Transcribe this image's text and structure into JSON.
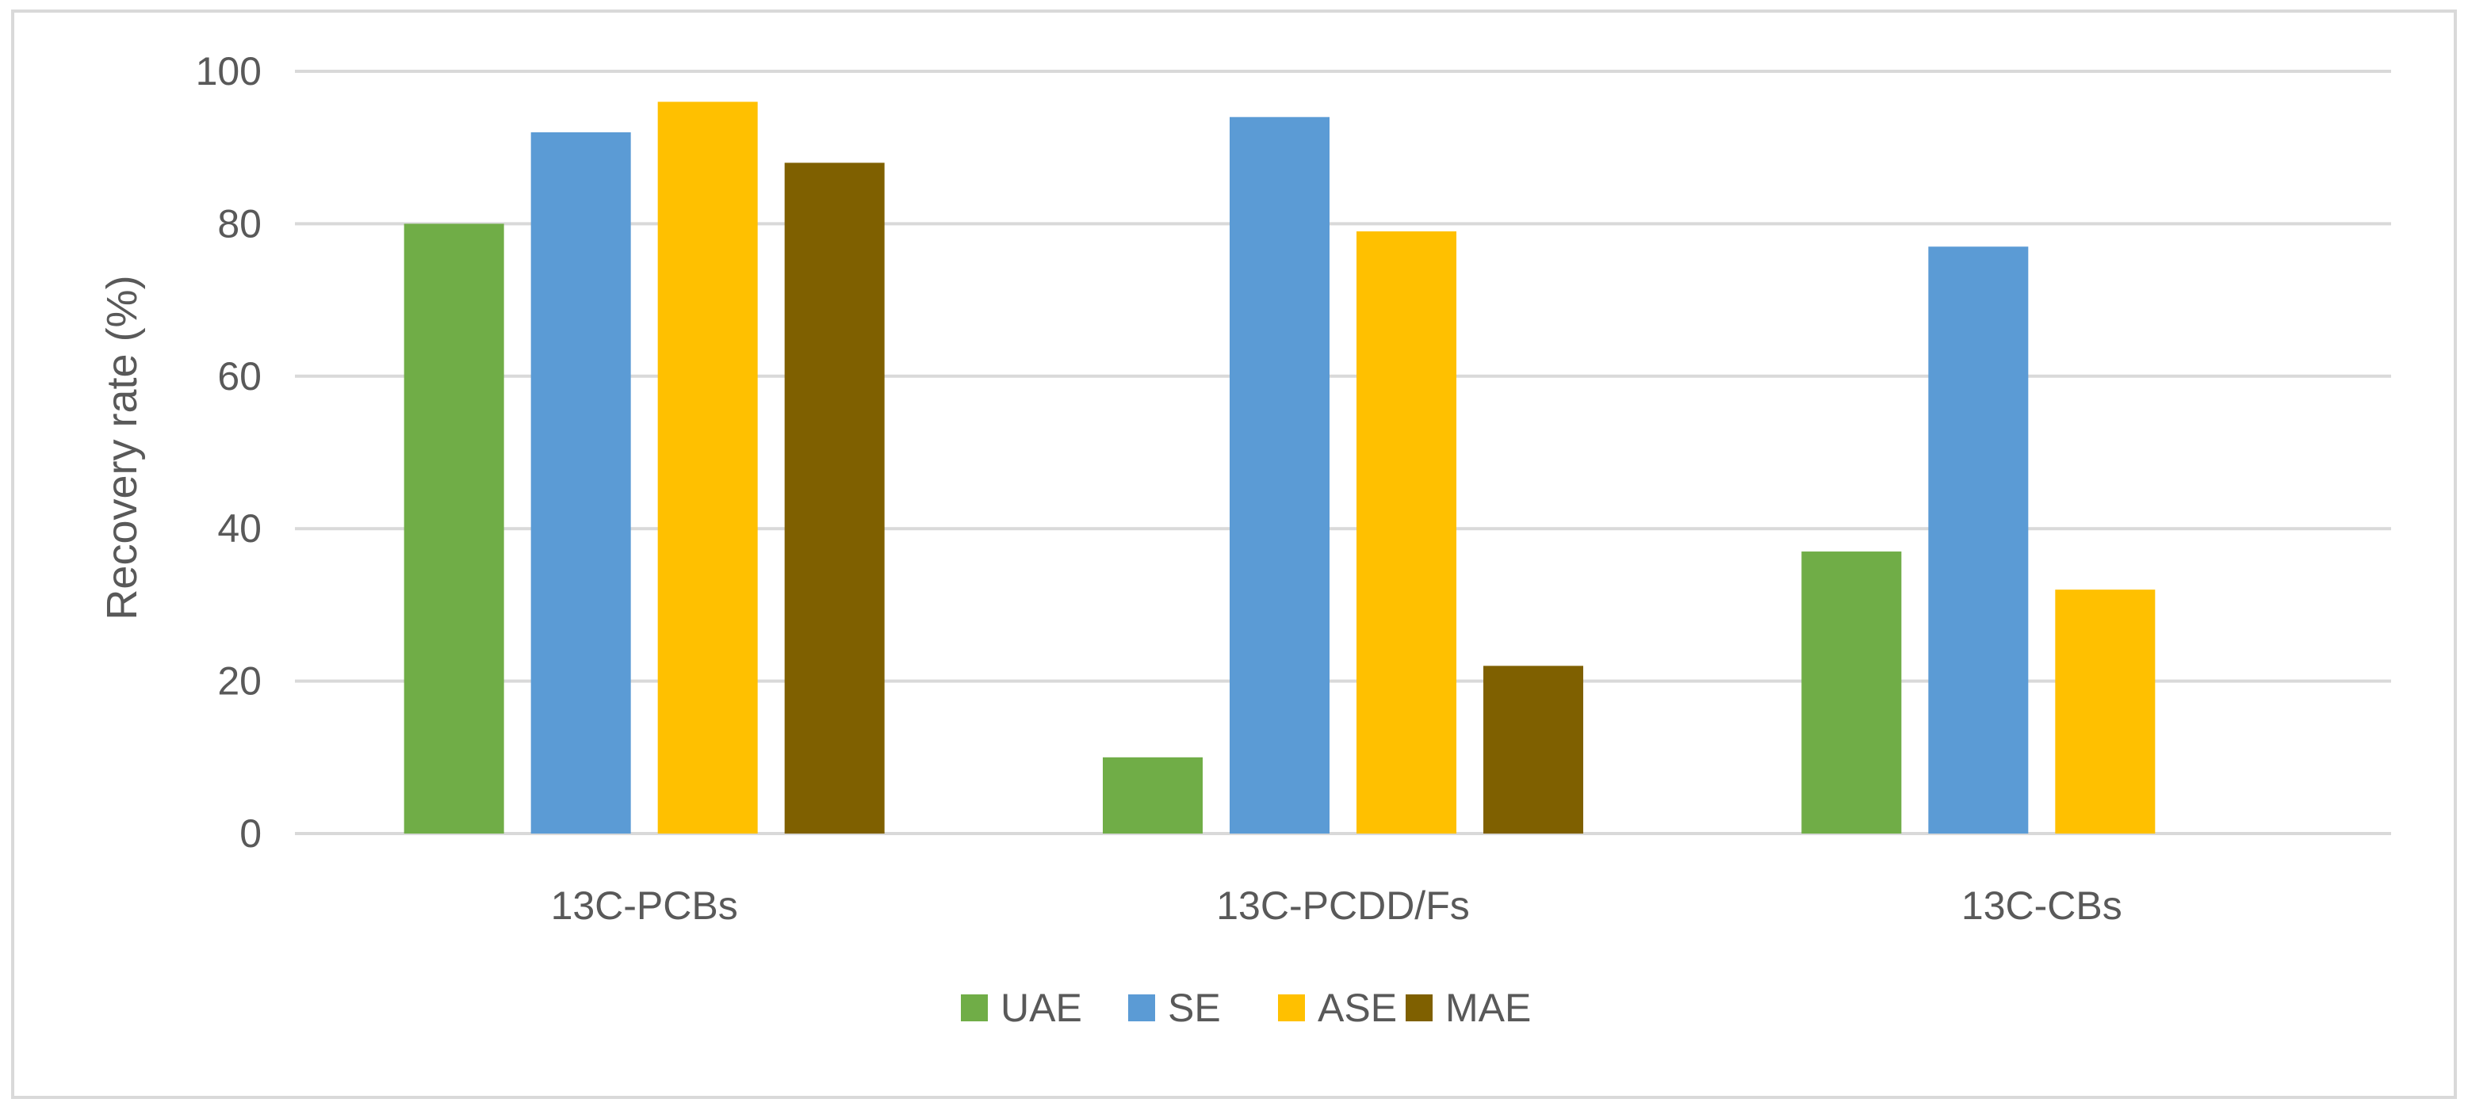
{
  "chart_data": {
    "type": "bar",
    "title": "",
    "xlabel": "",
    "ylabel": "Recovery rate (%)",
    "ylim": [
      0,
      100
    ],
    "yticks": [
      0,
      20,
      40,
      60,
      80,
      100
    ],
    "grid": true,
    "legend_position": "bottom",
    "categories": [
      "13C-PCBs",
      "13C-PCDD/Fs",
      "13C-CBs"
    ],
    "series": [
      {
        "name": "UAE",
        "color": "#70ad47",
        "values": [
          80,
          10,
          37
        ]
      },
      {
        "name": "SE",
        "color": "#5b9bd5",
        "values": [
          92,
          94,
          77
        ]
      },
      {
        "name": "ASE",
        "color": "#ffc000",
        "values": [
          96,
          79,
          32
        ]
      },
      {
        "name": "MAE",
        "color": "#7f6000",
        "values": [
          88,
          22,
          null
        ]
      }
    ]
  }
}
